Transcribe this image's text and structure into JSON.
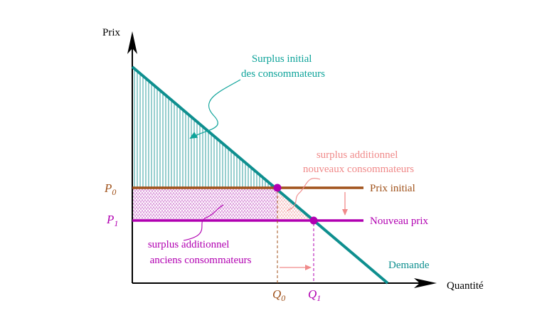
{
  "axes": {
    "y_label": "Prix",
    "x_label": "Quantité"
  },
  "curves": {
    "demand": {
      "label": "Demande",
      "color": "#0e8f8f"
    },
    "initial_price": {
      "label": "Prix initial",
      "color": "#a0521b"
    },
    "new_price": {
      "label": "Nouveau prix",
      "color": "#b100b1"
    }
  },
  "points": {
    "p0": {
      "base": "P",
      "sub": "0"
    },
    "p1": {
      "base": "P",
      "sub": "1"
    },
    "q0": {
      "base": "Q",
      "sub": "0"
    },
    "q1": {
      "base": "Q",
      "sub": "1"
    }
  },
  "annotations": {
    "consumer_surplus": {
      "lines": [
        "Surplus initial",
        "des consommateurs"
      ],
      "color": "#0ea39a"
    },
    "new_consumers": {
      "lines": [
        "surplus additionnel",
        "nouveaux consommateurs"
      ],
      "color": "#f08a8a"
    },
    "old_consumers": {
      "lines": [
        "surplus additionnel",
        "anciens consommateurs"
      ],
      "color": "#b100b1"
    }
  },
  "colors": {
    "axis": "#000000",
    "point_color": "#b100b1",
    "arrow_pink": "#f08a8a",
    "p_label_color": "#a0521b",
    "q0_color": "#a0521b",
    "q1_color": "#b100b1"
  }
}
